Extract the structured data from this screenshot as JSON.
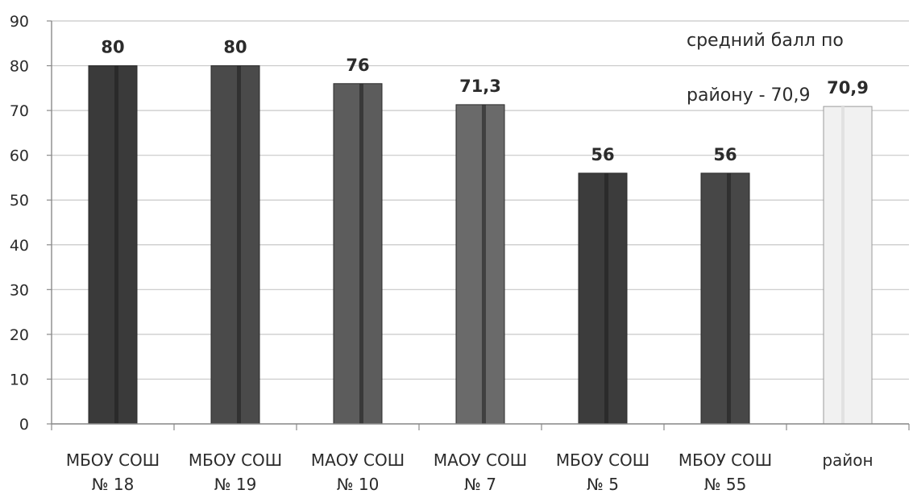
{
  "chart_data": {
    "type": "bar",
    "title": "",
    "xlabel": "",
    "ylabel": "",
    "ylim": [
      0,
      90
    ],
    "yticks": [
      0,
      10,
      20,
      30,
      40,
      50,
      60,
      70,
      80,
      90
    ],
    "grid": true,
    "categories": [
      [
        "МБОУ СОШ",
        "№ 18"
      ],
      [
        "МБОУ СОШ",
        "№ 19"
      ],
      [
        "МАОУ СОШ",
        "№ 10"
      ],
      [
        "МАОУ СОШ",
        "№ 7"
      ],
      [
        "МБОУ СОШ",
        "№ 5"
      ],
      [
        "МБОУ СОШ",
        "№ 55"
      ],
      [
        "район"
      ]
    ],
    "values": [
      80,
      80,
      76,
      71.3,
      56,
      56,
      70.9
    ],
    "value_labels": [
      "80",
      "80",
      "76",
      "71,3",
      "56",
      "56",
      "70,9"
    ],
    "bar_colors": [
      "#3a3a3a",
      "#4a4a4a",
      "#5c5c5c",
      "#6a6a6a",
      "#3c3c3c",
      "#474747",
      "#f1f1f1"
    ],
    "annotation": [
      "средний балл по",
      "району - 70,9"
    ]
  }
}
